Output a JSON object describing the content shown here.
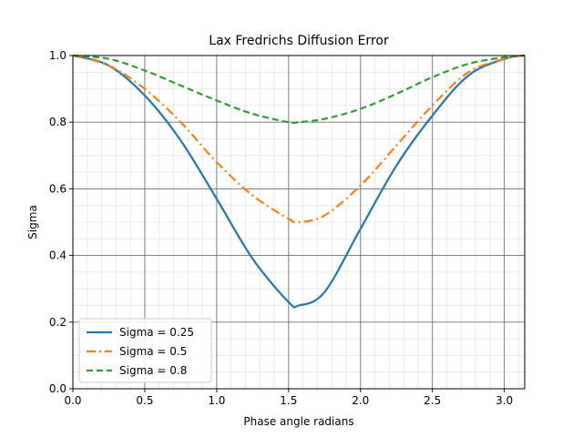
{
  "chart_data": {
    "type": "line",
    "title": "Lax Fredrichs Diffusion Error",
    "xlabel": "Phase angle radians",
    "ylabel": "Sigma",
    "xlim": [
      0,
      3.14159
    ],
    "ylim": [
      0,
      1.0
    ],
    "xticks": [
      0.0,
      0.5,
      1.0,
      1.5,
      2.0,
      2.5,
      3.0
    ],
    "xtick_labels": [
      "0.0",
      "0.5",
      "1.0",
      "1.5",
      "2.0",
      "2.5",
      "3.0"
    ],
    "yticks": [
      0.0,
      0.2,
      0.4,
      0.6,
      0.8,
      1.0
    ],
    "ytick_labels": [
      "0.0",
      "0.2",
      "0.4",
      "0.6",
      "0.8",
      "1.0"
    ],
    "grid": true,
    "minor_grid": true,
    "legend": "lower-left",
    "x": [
      0.0,
      0.25,
      0.5,
      0.75,
      1.0,
      1.25,
      1.5,
      1.5708,
      1.75,
      2.0,
      2.25,
      2.5,
      2.75,
      3.0,
      3.1416
    ],
    "series": [
      {
        "name": "Sigma = 0.25",
        "color": "#1f77b4",
        "dash": "solid",
        "values": [
          1.0,
          0.97,
          0.88,
          0.745,
          0.57,
          0.39,
          0.26,
          0.25,
          0.29,
          0.48,
          0.67,
          0.82,
          0.94,
          0.99,
          1.0
        ]
      },
      {
        "name": "Sigma = 0.5",
        "color": "#ff7f0e",
        "dash": "dashdot",
        "values": [
          1.0,
          0.97,
          0.9,
          0.8,
          0.68,
          0.58,
          0.51,
          0.5,
          0.52,
          0.61,
          0.73,
          0.85,
          0.95,
          0.99,
          1.0
        ]
      },
      {
        "name": "Sigma = 0.8",
        "color": "#2ca02c",
        "dash": "dashed",
        "values": [
          1.0,
          0.99,
          0.955,
          0.91,
          0.865,
          0.825,
          0.8,
          0.8,
          0.81,
          0.84,
          0.885,
          0.935,
          0.975,
          0.995,
          1.0
        ]
      }
    ]
  }
}
